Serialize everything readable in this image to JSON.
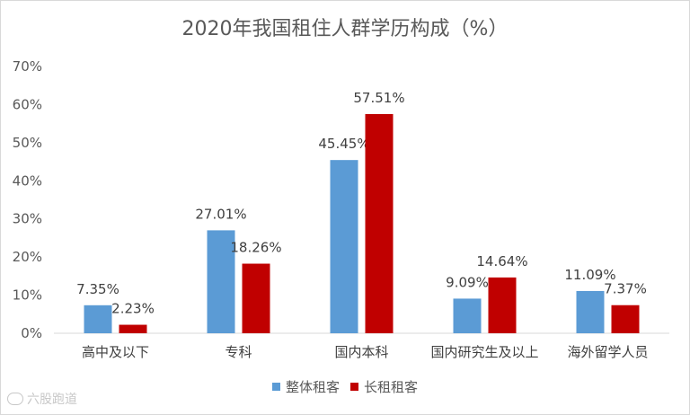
{
  "chart_data": {
    "type": "bar",
    "title": "2020年我国租住人群学历构成（%）",
    "categories": [
      "高中及以下",
      "专科",
      "国内本科",
      "国内研究生及以上",
      "海外留学人员"
    ],
    "series": [
      {
        "name": "整体租客",
        "values": [
          7.35,
          27.01,
          45.45,
          9.09,
          11.09
        ],
        "labels": [
          "7.35%",
          "27.01%",
          "45.45%",
          "9.09%",
          "11.09%"
        ]
      },
      {
        "name": "长租租客",
        "values": [
          2.23,
          18.26,
          57.51,
          14.64,
          7.37
        ],
        "labels": [
          "2.23%",
          "18.26%",
          "57.51%",
          "14.64%",
          "7.37%"
        ]
      }
    ],
    "ylim": [
      0,
      70
    ],
    "yticks": [
      "0%",
      "10%",
      "20%",
      "30%",
      "40%",
      "50%",
      "60%",
      "70%"
    ],
    "ytick_values": [
      0,
      10,
      20,
      30,
      40,
      50,
      60,
      70
    ],
    "grid": false,
    "legend_position": "bottom"
  },
  "colors": {
    "series": [
      "#5b9bd5",
      "#c00000"
    ],
    "axis": "#d9d9d9"
  },
  "watermark": {
    "text": "六股跑道"
  }
}
